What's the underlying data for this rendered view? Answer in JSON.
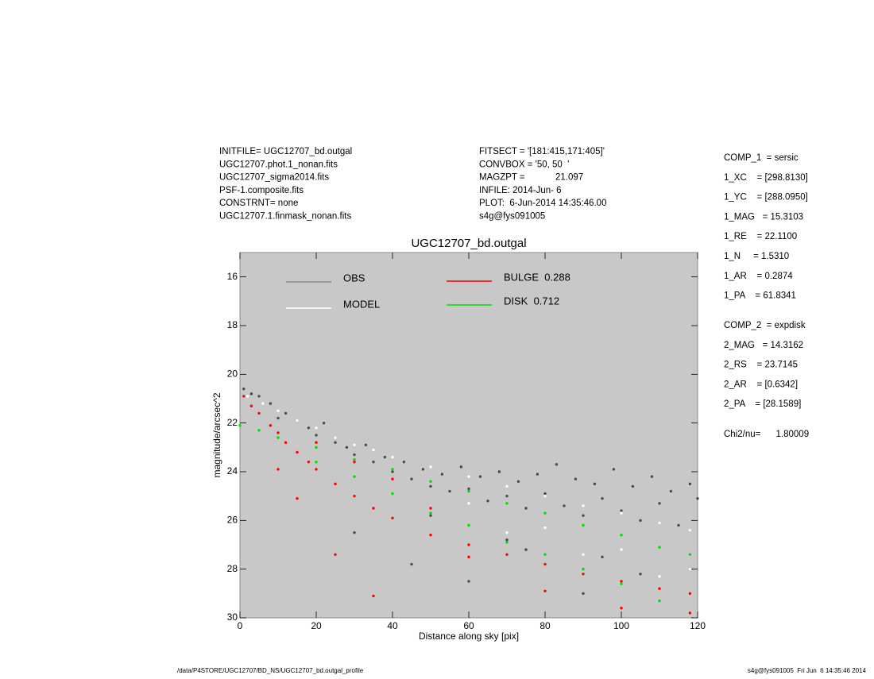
{
  "header_left": [
    "INITFILE= UGC12707_bd.outgal",
    "UGC12707.phot.1_nonan.fits",
    "UGC12707_sigma2014.fits",
    "PSF-1.composite.fits",
    "CONSTRNT= none",
    "UGC12707.1.finmask_nonan.fits"
  ],
  "header_mid": [
    "FITSECT = '[181:415,171:405]'",
    "CONVBOX = '50, 50  '",
    "MAGZPT =            21.097",
    "INFILE: 2014-Jun- 6",
    "PLOT:  6-Jun-2014 14:35:46.00",
    "s4g@fys091005"
  ],
  "params": [
    [
      "COMP_1  = sersic",
      "1_XC    = [298.8130]",
      "1_YC    = [288.0950]",
      "1_MAG   = 15.3103",
      "1_RE    = 22.1100",
      "1_N     = 1.5310",
      "1_AR    = 0.2874",
      "1_PA    = 61.8341"
    ],
    [
      "COMP_2  = expdisk",
      "2_MAG   = 14.3162",
      "2_RS    = 23.7145",
      "2_AR    = [0.6342]",
      "2_PA    = [28.1589]"
    ],
    [
      "Chi2/nu=      1.80009"
    ]
  ],
  "footer_left": "/data/P4STORE/UGC12707/BD_NS/UGC12707_bd.outgal_profile",
  "footer_right": "s4g@fys091005  Fri Jun  6 14:35:46 2014",
  "chart_data": {
    "type": "scatter",
    "title": "UGC12707_bd.outgal",
    "xlabel": "Distance along sky [pix]",
    "ylabel": "magnitude/arcsec^2",
    "xlim": [
      0,
      120
    ],
    "ylim": [
      30,
      15
    ],
    "xticks": [
      0,
      20,
      40,
      60,
      80,
      100,
      120
    ],
    "yticks": [
      16,
      18,
      20,
      22,
      24,
      26,
      28,
      30
    ],
    "background": "#c8c8c8",
    "series": [
      {
        "name": "OBS",
        "color": "#4a4a4a",
        "label_color": "#8c8c8c",
        "x": [
          1,
          3,
          5,
          8,
          10,
          12,
          15,
          18,
          20,
          22,
          25,
          28,
          30,
          33,
          35,
          38,
          40,
          43,
          45,
          48,
          50,
          53,
          55,
          58,
          60,
          63,
          65,
          68,
          70,
          73,
          75,
          78,
          80,
          83,
          85,
          88,
          90,
          93,
          95,
          98,
          100,
          103,
          105,
          108,
          110,
          113,
          115,
          118,
          120,
          30,
          45,
          60,
          75,
          90,
          105,
          50,
          70,
          95
        ],
        "y": [
          20.6,
          20.8,
          20.9,
          21.2,
          21.8,
          21.6,
          21.9,
          22.2,
          22.5,
          22.0,
          22.8,
          23.0,
          23.3,
          22.9,
          23.6,
          23.4,
          24.0,
          23.6,
          24.3,
          23.9,
          24.6,
          24.1,
          24.8,
          23.8,
          24.7,
          24.2,
          25.2,
          24.0,
          25.0,
          24.4,
          25.5,
          24.1,
          24.9,
          23.7,
          25.4,
          24.3,
          25.8,
          24.5,
          25.1,
          23.9,
          25.6,
          24.6,
          26.0,
          24.2,
          25.3,
          24.8,
          26.2,
          24.5,
          25.1,
          26.5,
          27.8,
          28.5,
          27.2,
          29.0,
          28.2,
          25.8,
          26.8,
          27.5
        ]
      },
      {
        "name": "MODEL",
        "color": "#ffffff",
        "label_color": "#ffffff",
        "x": [
          2,
          6,
          10,
          15,
          20,
          25,
          30,
          35,
          40,
          50,
          60,
          70,
          80,
          90,
          100,
          110,
          118,
          60,
          80,
          100,
          118,
          70,
          90,
          110
        ],
        "y": [
          20.9,
          21.2,
          21.5,
          21.9,
          22.2,
          22.6,
          22.9,
          23.1,
          23.4,
          23.8,
          24.2,
          24.6,
          25.0,
          25.4,
          25.7,
          26.1,
          26.4,
          25.3,
          26.3,
          27.2,
          28.0,
          26.5,
          27.4,
          28.3
        ]
      },
      {
        "name": "BULGE  0.288",
        "color": "#ff0000",
        "label_color": "#ff0000",
        "x": [
          1,
          3,
          5,
          8,
          10,
          12,
          15,
          18,
          20,
          25,
          30,
          35,
          40,
          50,
          60,
          70,
          80,
          90,
          100,
          110,
          118,
          20,
          30,
          40,
          50,
          60,
          80,
          100,
          118,
          10,
          15,
          25,
          35
        ],
        "y": [
          20.9,
          21.3,
          21.6,
          22.1,
          22.4,
          22.8,
          23.2,
          23.6,
          23.9,
          24.5,
          25.0,
          25.5,
          25.9,
          26.6,
          27.0,
          27.4,
          27.8,
          28.2,
          28.5,
          28.8,
          29.0,
          22.8,
          23.6,
          24.3,
          25.5,
          27.5,
          28.9,
          29.6,
          29.8,
          23.9,
          25.1,
          27.4,
          29.1
        ]
      },
      {
        "name": "DISK  0.712",
        "color": "#00dd00",
        "label_color": "#00dd00",
        "x": [
          0,
          5,
          10,
          20,
          30,
          40,
          50,
          60,
          70,
          80,
          90,
          100,
          110,
          118,
          20,
          40,
          60,
          80,
          100,
          110,
          30,
          50,
          70,
          90
        ],
        "y": [
          22.1,
          22.3,
          22.6,
          23.0,
          23.5,
          23.9,
          24.4,
          24.8,
          25.3,
          25.7,
          26.2,
          26.6,
          27.1,
          27.4,
          23.6,
          24.9,
          26.2,
          27.4,
          28.6,
          29.3,
          24.2,
          25.7,
          26.9,
          28.0
        ]
      }
    ]
  }
}
